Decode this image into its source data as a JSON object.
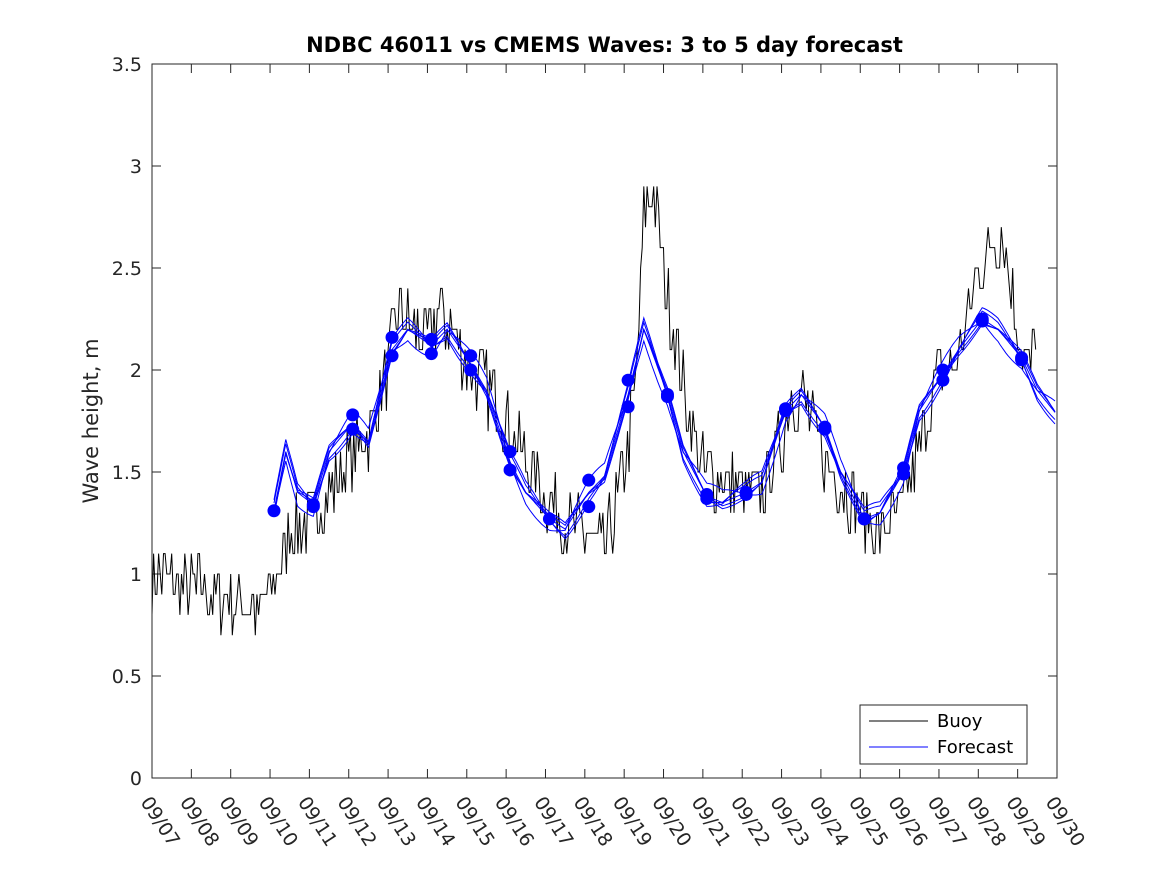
{
  "chart_data": {
    "type": "line",
    "title": "NDBC 46011 vs CMEMS Waves: 3 to 5 day forecast",
    "xlabel": "",
    "ylabel": "Wave height, m",
    "xlim": [
      0,
      23
    ],
    "ylim": [
      0,
      3.5
    ],
    "x_tick_labels": [
      "09/07",
      "09/08",
      "09/09",
      "09/10",
      "09/11",
      "09/12",
      "09/13",
      "09/14",
      "09/15",
      "09/16",
      "09/17",
      "09/18",
      "09/19",
      "09/20",
      "09/21",
      "09/22",
      "09/23",
      "09/24",
      "09/25",
      "09/26",
      "09/27",
      "09/28",
      "09/29",
      "09/30"
    ],
    "y_ticks": [
      0,
      0.5,
      1,
      1.5,
      2,
      2.5,
      3,
      3.5
    ],
    "y_tick_labels": [
      "0",
      "0.5",
      "1",
      "1.5",
      "2",
      "2.5",
      "3",
      "3.5"
    ],
    "legend": {
      "position": "bottom-right",
      "entries": [
        "Buoy",
        "Forecast"
      ]
    },
    "colors": {
      "buoy": "#000000",
      "forecast": "#0000ff"
    },
    "buoy_anchor_days": [
      0,
      0.5,
      1,
      1.5,
      2,
      2.5,
      2.7,
      3,
      3.2,
      3.5,
      4,
      4.5,
      5,
      5.5,
      6,
      6.3,
      6.6,
      7,
      7.3,
      7.6,
      8,
      8.3,
      8.6,
      9,
      9.5,
      10,
      10.5,
      11,
      11.5,
      12,
      12.3,
      12.5,
      12.7,
      13,
      13.5,
      14,
      14.5,
      15,
      15.5,
      16,
      16.3,
      16.6,
      17,
      17.5,
      18,
      18.5,
      19,
      19.5,
      20,
      20.5,
      21,
      21.3,
      21.6,
      22,
      22.3,
      22.5
    ],
    "buoy_anchor_values": [
      1.0,
      0.95,
      0.93,
      0.9,
      0.88,
      0.86,
      0.8,
      0.9,
      1.0,
      1.2,
      1.25,
      1.4,
      1.55,
      1.7,
      2.0,
      2.3,
      2.2,
      2.15,
      2.3,
      2.2,
      2.05,
      1.95,
      1.9,
      1.75,
      1.55,
      1.4,
      1.25,
      1.2,
      1.1,
      1.5,
      1.9,
      2.75,
      2.9,
      2.5,
      1.9,
      1.5,
      1.45,
      1.4,
      1.4,
      1.65,
      1.9,
      1.85,
      1.6,
      1.45,
      1.3,
      1.2,
      1.3,
      1.6,
      2.0,
      2.05,
      2.5,
      2.6,
      2.7,
      2.2,
      2.0,
      2.3
    ],
    "forecast_points": [
      {
        "x": 3.1,
        "y": 1.31
      },
      {
        "x": 4.1,
        "y": 1.34
      },
      {
        "x": 4.1,
        "y": 1.33
      },
      {
        "x": 5.1,
        "y": 1.78
      },
      {
        "x": 5.1,
        "y": 1.71
      },
      {
        "x": 6.1,
        "y": 2.16
      },
      {
        "x": 6.1,
        "y": 2.07
      },
      {
        "x": 7.1,
        "y": 2.15
      },
      {
        "x": 7.1,
        "y": 2.08
      },
      {
        "x": 8.1,
        "y": 2.07
      },
      {
        "x": 8.1,
        "y": 2.0
      },
      {
        "x": 9.1,
        "y": 1.6
      },
      {
        "x": 9.1,
        "y": 1.51
      },
      {
        "x": 10.1,
        "y": 1.27
      },
      {
        "x": 11.1,
        "y": 1.46
      },
      {
        "x": 11.1,
        "y": 1.33
      },
      {
        "x": 12.1,
        "y": 1.95
      },
      {
        "x": 12.1,
        "y": 1.82
      },
      {
        "x": 13.1,
        "y": 1.88
      },
      {
        "x": 13.1,
        "y": 1.87
      },
      {
        "x": 14.1,
        "y": 1.39
      },
      {
        "x": 14.1,
        "y": 1.37
      },
      {
        "x": 15.1,
        "y": 1.4
      },
      {
        "x": 15.1,
        "y": 1.39
      },
      {
        "x": 16.1,
        "y": 1.81
      },
      {
        "x": 16.1,
        "y": 1.8
      },
      {
        "x": 17.1,
        "y": 1.72
      },
      {
        "x": 17.1,
        "y": 1.71
      },
      {
        "x": 18.1,
        "y": 1.27
      },
      {
        "x": 18.1,
        "y": 1.27
      },
      {
        "x": 19.1,
        "y": 1.52
      },
      {
        "x": 19.1,
        "y": 1.49
      },
      {
        "x": 20.1,
        "y": 2.0
      },
      {
        "x": 20.1,
        "y": 1.95
      },
      {
        "x": 21.1,
        "y": 2.25
      },
      {
        "x": 21.1,
        "y": 2.24
      },
      {
        "x": 22.1,
        "y": 2.06
      },
      {
        "x": 22.1,
        "y": 2.05
      }
    ],
    "forecast_path_days": [
      3.1,
      3.4,
      3.7,
      4.1,
      4.5,
      5.1,
      5.5,
      6.1,
      6.5,
      7.1,
      7.5,
      8.1,
      8.5,
      9.1,
      9.5,
      10.1,
      10.5,
      11.1,
      11.5,
      12.1,
      12.5,
      13.1,
      13.5,
      14.1,
      14.5,
      15.1,
      15.5,
      16.1,
      16.5,
      17.1,
      17.5,
      18.1,
      18.5,
      19.1,
      19.5,
      20.1,
      20.5,
      21.1,
      21.5,
      22.1,
      22.5,
      23
    ],
    "forecast_path_values": [
      1.31,
      1.6,
      1.4,
      1.34,
      1.6,
      1.74,
      1.65,
      2.1,
      2.2,
      2.12,
      2.2,
      2.03,
      1.9,
      1.55,
      1.4,
      1.27,
      1.22,
      1.4,
      1.48,
      1.88,
      2.2,
      1.88,
      1.6,
      1.38,
      1.35,
      1.4,
      1.45,
      1.8,
      1.88,
      1.72,
      1.5,
      1.27,
      1.3,
      1.5,
      1.8,
      1.98,
      2.1,
      2.25,
      2.2,
      2.06,
      1.9,
      1.78
    ]
  }
}
